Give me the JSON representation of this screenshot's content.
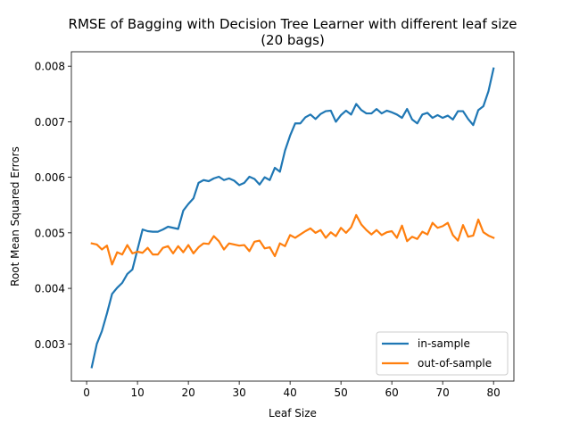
{
  "chart_data": {
    "type": "line",
    "title": "RMSE of Bagging with Decision Tree Learner with different leaf size",
    "subtitle": "(20 bags)",
    "xlabel": "Leaf Size",
    "ylabel": "Root Mean Squared Errors",
    "xlim": [
      -3,
      84
    ],
    "ylim": [
      0.00233,
      0.00826
    ],
    "xticks": [
      0,
      10,
      20,
      30,
      40,
      50,
      60,
      70,
      80
    ],
    "xtick_labels": [
      "0",
      "10",
      "20",
      "30",
      "40",
      "50",
      "60",
      "70",
      "80"
    ],
    "yticks": [
      0.003,
      0.004,
      0.005,
      0.006,
      0.007,
      0.008
    ],
    "ytick_labels": [
      "0.003",
      "0.004",
      "0.005",
      "0.006",
      "0.007",
      "0.008"
    ],
    "grid": false,
    "legend_position": "lower-right",
    "x": [
      1,
      2,
      3,
      4,
      5,
      6,
      7,
      8,
      9,
      10,
      11,
      12,
      13,
      14,
      15,
      16,
      17,
      18,
      19,
      20,
      21,
      22,
      23,
      24,
      25,
      26,
      27,
      28,
      29,
      30,
      31,
      32,
      33,
      34,
      35,
      36,
      37,
      38,
      39,
      40,
      41,
      42,
      43,
      44,
      45,
      46,
      47,
      48,
      49,
      50,
      51,
      52,
      53,
      54,
      55,
      56,
      57,
      58,
      59,
      60,
      61,
      62,
      63,
      64,
      65,
      66,
      67,
      68,
      69,
      70,
      71,
      72,
      73,
      74,
      75,
      76,
      77,
      78,
      79,
      80
    ],
    "series": [
      {
        "name": "in-sample",
        "color": "#1f77b4",
        "values": [
          0.00258,
          0.003,
          0.00323,
          0.00355,
          0.0039,
          0.00401,
          0.0041,
          0.00426,
          0.00434,
          0.0047,
          0.00506,
          0.00503,
          0.00502,
          0.00502,
          0.00506,
          0.00511,
          0.00509,
          0.00507,
          0.0054,
          0.00552,
          0.00562,
          0.0059,
          0.00595,
          0.00593,
          0.00598,
          0.00601,
          0.00595,
          0.00598,
          0.00594,
          0.00586,
          0.0059,
          0.00601,
          0.00597,
          0.00587,
          0.006,
          0.00595,
          0.00617,
          0.0061,
          0.00648,
          0.00675,
          0.00697,
          0.00697,
          0.00708,
          0.00713,
          0.00705,
          0.00714,
          0.00719,
          0.0072,
          0.007,
          0.00712,
          0.0072,
          0.00713,
          0.00732,
          0.00721,
          0.00715,
          0.00715,
          0.00723,
          0.00715,
          0.0072,
          0.00717,
          0.00713,
          0.00707,
          0.00723,
          0.00704,
          0.00697,
          0.00713,
          0.00716,
          0.00707,
          0.00712,
          0.00707,
          0.00711,
          0.00704,
          0.00719,
          0.00719,
          0.00705,
          0.00694,
          0.00721,
          0.00728,
          0.00755,
          0.00796
        ]
      },
      {
        "name": "out-of-sample",
        "color": "#ff7f0e",
        "values": [
          0.00481,
          0.00479,
          0.0047,
          0.00477,
          0.00443,
          0.00465,
          0.00461,
          0.00478,
          0.00463,
          0.00466,
          0.00464,
          0.00473,
          0.00461,
          0.00461,
          0.00473,
          0.00476,
          0.00463,
          0.00476,
          0.00465,
          0.00478,
          0.00463,
          0.00474,
          0.00481,
          0.0048,
          0.00494,
          0.00485,
          0.0047,
          0.00481,
          0.00479,
          0.00477,
          0.00478,
          0.00467,
          0.00484,
          0.00486,
          0.00472,
          0.00474,
          0.00458,
          0.00481,
          0.00476,
          0.00496,
          0.00491,
          0.00497,
          0.00503,
          0.00508,
          0.005,
          0.00505,
          0.00491,
          0.00501,
          0.00494,
          0.00509,
          0.005,
          0.0051,
          0.00532,
          0.00515,
          0.00505,
          0.00497,
          0.00505,
          0.00496,
          0.00501,
          0.00503,
          0.00491,
          0.00513,
          0.00485,
          0.00493,
          0.00489,
          0.00502,
          0.00497,
          0.00518,
          0.00509,
          0.00512,
          0.00518,
          0.00496,
          0.00486,
          0.00514,
          0.00493,
          0.00495,
          0.00524,
          0.00501,
          0.00495,
          0.00491
        ]
      }
    ]
  }
}
